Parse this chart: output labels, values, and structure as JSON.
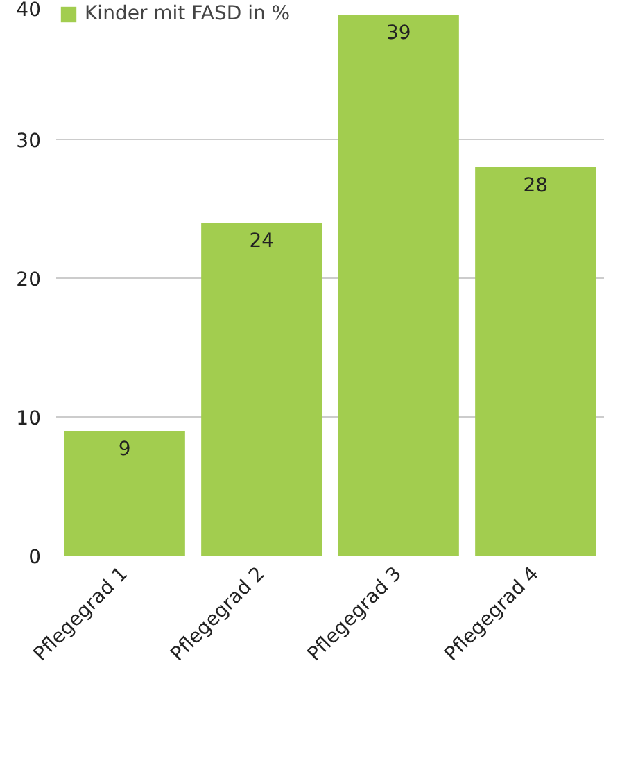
{
  "chart_data": {
    "type": "bar",
    "categories": [
      "Pflegegrad 1",
      "Pflegegrad 2",
      "Pflegegrad 3",
      "Pflegegrad 4"
    ],
    "series": [
      {
        "name": "Kinder mit FASD in %",
        "color": "#a2cd4f",
        "values": [
          9,
          24,
          39,
          28
        ]
      }
    ],
    "ylim": [
      0,
      40
    ],
    "yticks": [
      0,
      10,
      20,
      30,
      40
    ],
    "grid": "y",
    "legend": "top left",
    "data_labels": true
  }
}
